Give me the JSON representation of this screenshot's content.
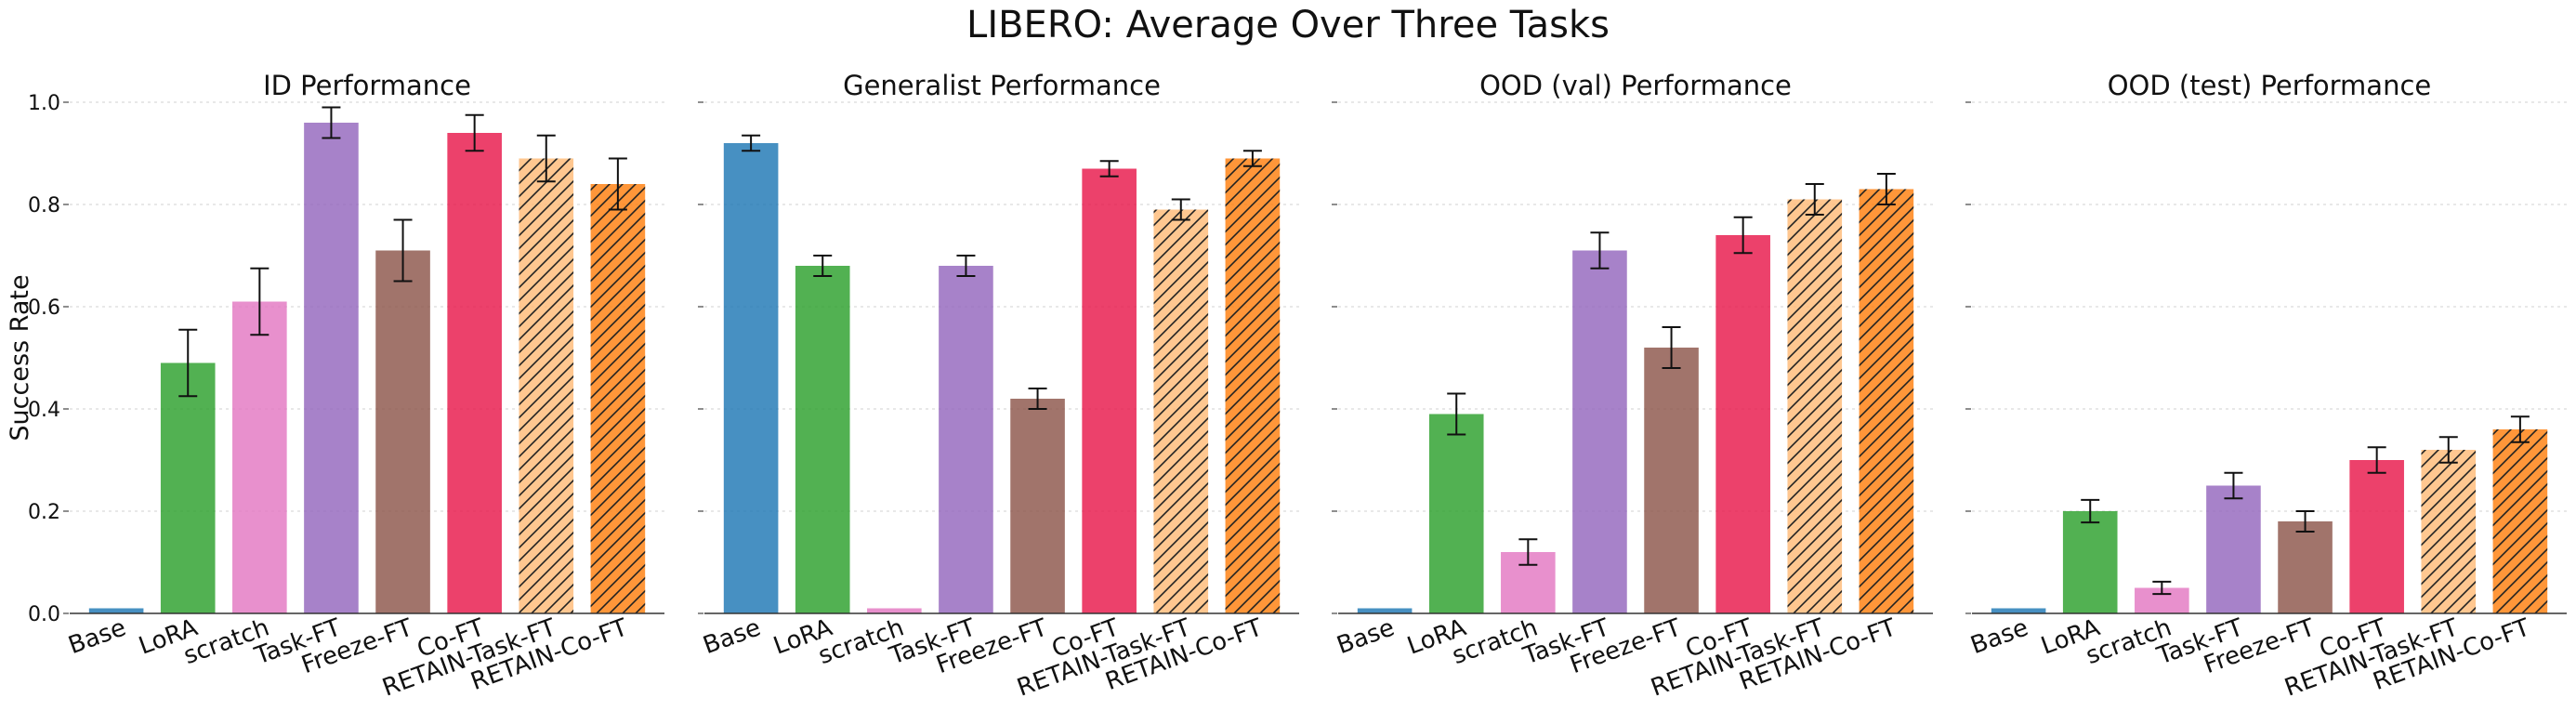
{
  "figure": {
    "title": "LIBERO: Average Over Three Tasks",
    "ylabel": "Success Rate"
  },
  "chart_data": [
    {
      "type": "bar",
      "title": "ID Performance",
      "categories": [
        "Base",
        "LoRA",
        "scratch",
        "Task-FT",
        "Freeze-FT",
        "Co-FT",
        "RETAIN-Task-FT",
        "RETAIN-Co-FT"
      ],
      "values": [
        0.01,
        0.49,
        0.61,
        0.96,
        0.71,
        0.94,
        0.89,
        0.84
      ],
      "errors": [
        0.0,
        0.065,
        0.065,
        0.03,
        0.06,
        0.035,
        0.045,
        0.05
      ],
      "ylim": [
        0,
        1.0
      ],
      "yticks": [
        "0.0",
        "0.2",
        "0.4",
        "0.6",
        "0.8",
        "1.0"
      ],
      "ylabel": "Success Rate",
      "grid": "horizontal dotted"
    },
    {
      "type": "bar",
      "title": "Generalist Performance",
      "categories": [
        "Base",
        "LoRA",
        "scratch",
        "Task-FT",
        "Freeze-FT",
        "Co-FT",
        "RETAIN-Task-FT",
        "RETAIN-Co-FT"
      ],
      "values": [
        0.92,
        0.68,
        0.01,
        0.68,
        0.42,
        0.87,
        0.79,
        0.89
      ],
      "errors": [
        0.015,
        0.02,
        0.0,
        0.02,
        0.02,
        0.015,
        0.02,
        0.015
      ],
      "ylim": [
        0,
        1.0
      ],
      "grid": "horizontal dotted"
    },
    {
      "type": "bar",
      "title": "OOD (val) Performance",
      "categories": [
        "Base",
        "LoRA",
        "scratch",
        "Task-FT",
        "Freeze-FT",
        "Co-FT",
        "RETAIN-Task-FT",
        "RETAIN-Co-FT"
      ],
      "values": [
        0.01,
        0.39,
        0.12,
        0.71,
        0.52,
        0.74,
        0.81,
        0.83
      ],
      "errors": [
        0.0,
        0.04,
        0.025,
        0.035,
        0.04,
        0.035,
        0.03,
        0.03
      ],
      "ylim": [
        0,
        1.0
      ],
      "grid": "horizontal dotted"
    },
    {
      "type": "bar",
      "title": "OOD (test) Performance",
      "categories": [
        "Base",
        "LoRA",
        "scratch",
        "Task-FT",
        "Freeze-FT",
        "Co-FT",
        "RETAIN-Task-FT",
        "RETAIN-Co-FT"
      ],
      "values": [
        0.01,
        0.2,
        0.05,
        0.25,
        0.18,
        0.3,
        0.32,
        0.36
      ],
      "errors": [
        0.0,
        0.022,
        0.012,
        0.025,
        0.02,
        0.025,
        0.025,
        0.025
      ],
      "ylim": [
        0,
        1.0
      ],
      "grid": "horizontal dotted"
    }
  ],
  "bar_styles": [
    {
      "color": "#1f77b4",
      "hatch": false
    },
    {
      "color": "#2ca02c",
      "hatch": false
    },
    {
      "color": "#e377c2",
      "hatch": false
    },
    {
      "color": "#9467bd",
      "hatch": false
    },
    {
      "color": "#8c564b",
      "hatch": false
    },
    {
      "color": "#e8174b",
      "hatch": false
    },
    {
      "color": "#ffbb78",
      "hatch": true
    },
    {
      "color": "#ff7f0e",
      "hatch": true
    }
  ]
}
